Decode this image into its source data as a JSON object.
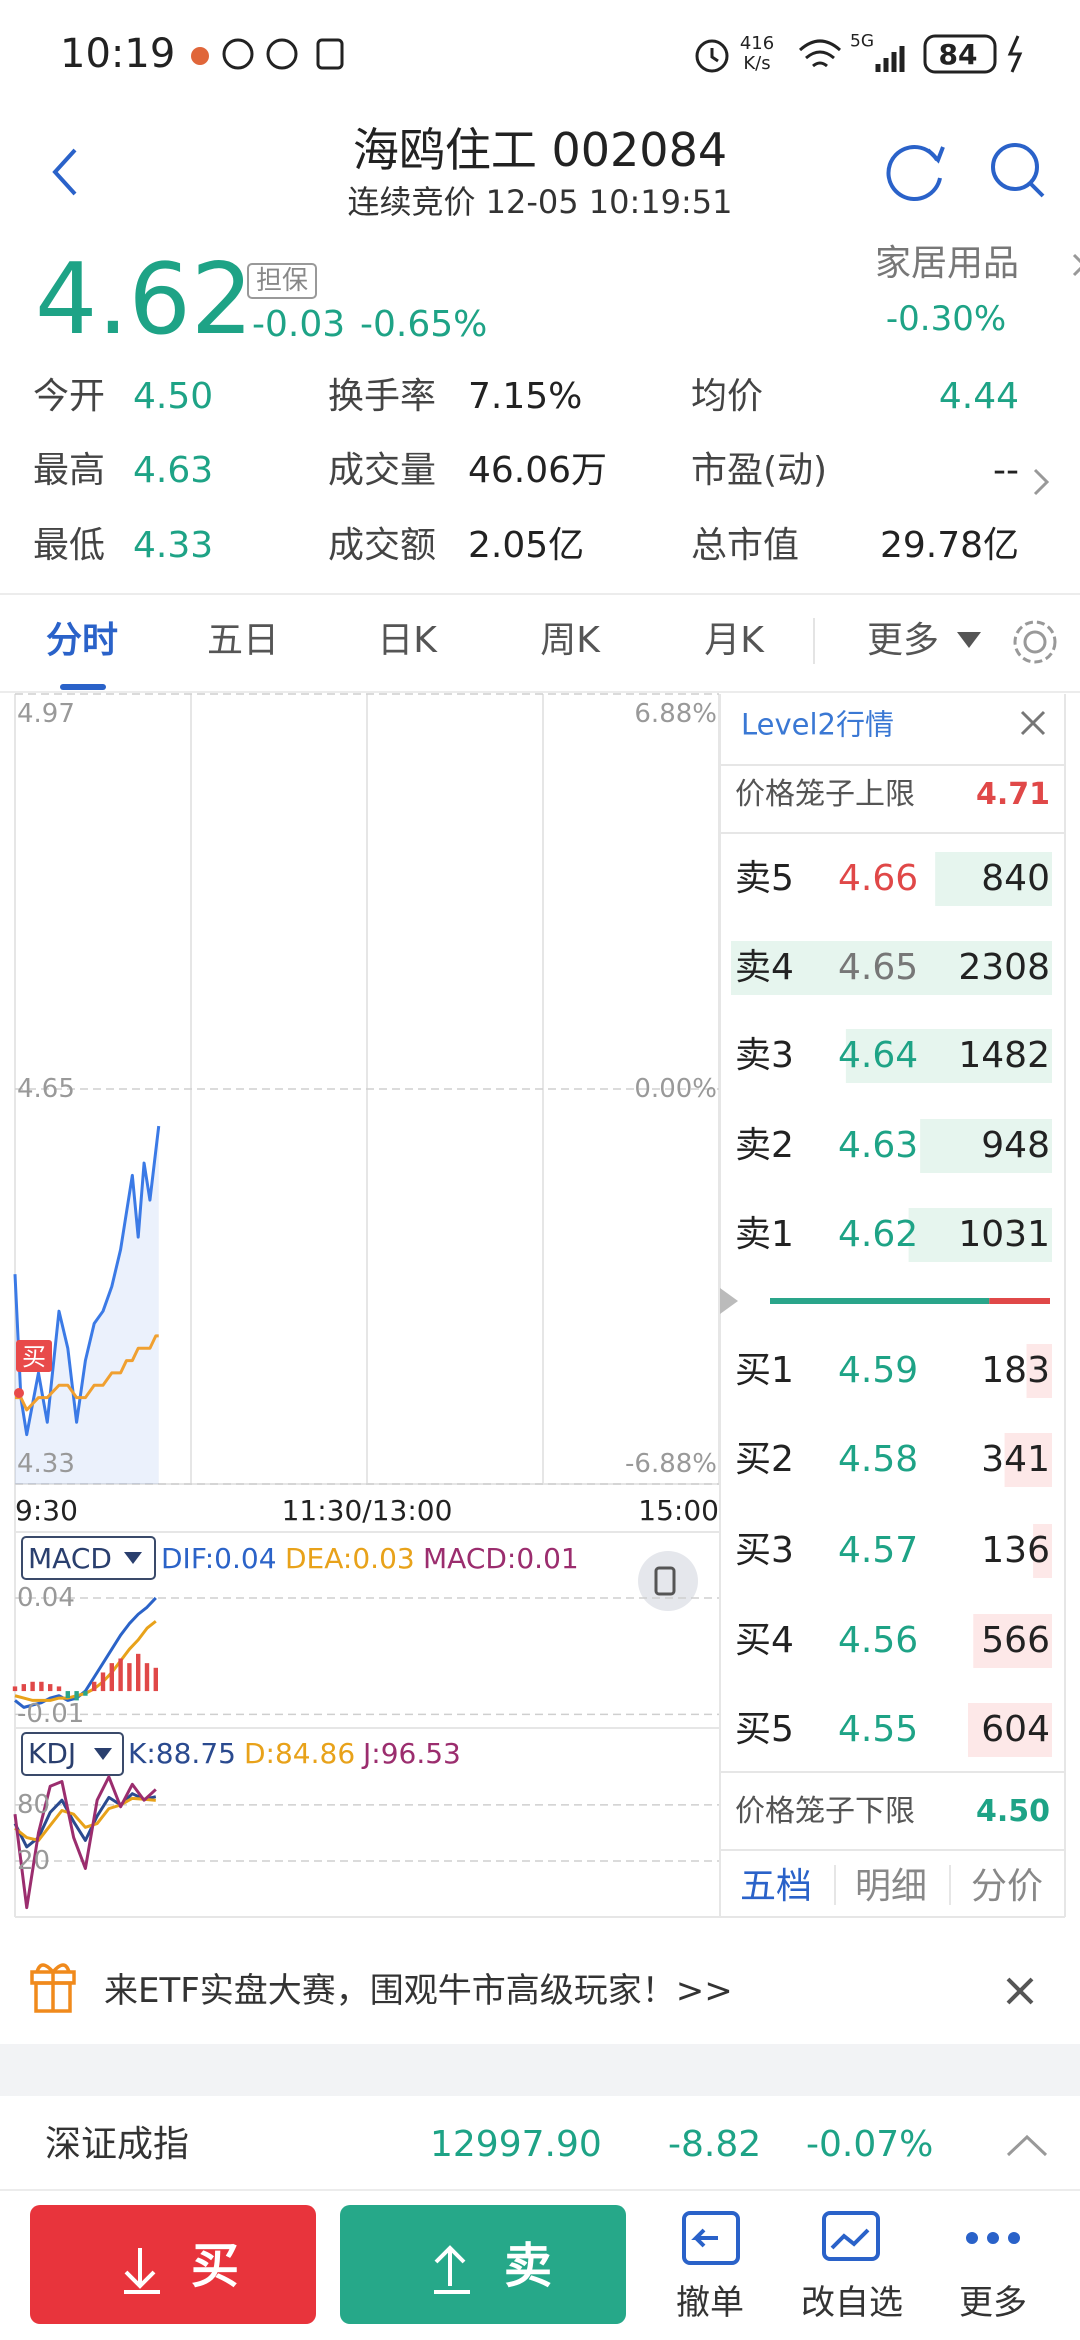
{
  "status_bar": {
    "time": "10:19",
    "net_speed": "416",
    "net_unit": "K/s",
    "network": "5G",
    "battery": "84"
  },
  "header": {
    "title": "海鸥住工 002084",
    "subtitle": "连续竞价 12-05 10:19:51"
  },
  "quote": {
    "price": "4.62",
    "badge": "担保",
    "change": "-0.03",
    "change_pct": "-0.65%",
    "sector": "家居用品",
    "sector_change": "-0.30%"
  },
  "stats": [
    [
      {
        "label": "今开",
        "value": "4.50",
        "color": "#1ea386"
      },
      {
        "label": "换手率",
        "value": "7.15%",
        "color": "#222222"
      },
      {
        "label": "均价",
        "value": "4.44",
        "color": "#1ea386"
      }
    ],
    [
      {
        "label": "最高",
        "value": "4.63",
        "color": "#1ea386"
      },
      {
        "label": "成交量",
        "value": "46.06万",
        "color": "#222222"
      },
      {
        "label": "市盈(动)",
        "value": "--",
        "color": "#222222"
      }
    ],
    [
      {
        "label": "最低",
        "value": "4.33",
        "color": "#1ea386"
      },
      {
        "label": "成交额",
        "value": "2.05亿",
        "color": "#222222"
      },
      {
        "label": "总市值",
        "value": "29.78亿",
        "color": "#222222"
      }
    ]
  ],
  "tabs": {
    "items": [
      "分时",
      "五日",
      "日K",
      "周K",
      "月K",
      "更多"
    ],
    "active": 0
  },
  "chart_data": [
    {
      "type": "line",
      "xlim": [
        0,
        240
      ],
      "xticks": [
        {
          "value": 0,
          "label": "9:30"
        },
        {
          "value": 120,
          "label": "11:30/13:00"
        },
        {
          "value": 240,
          "label": "15:00"
        }
      ],
      "ylim": [
        4.33,
        4.97
      ],
      "yticks": [
        4.33,
        4.65,
        4.97
      ],
      "y2lim": [
        -6.88,
        6.88
      ],
      "y2ticks": [
        {
          "value": -6.88,
          "label": "-6.88%"
        },
        {
          "value": 0,
          "label": "0.00%"
        },
        {
          "value": 6.88,
          "label": "6.88%"
        }
      ],
      "grid": true,
      "annotations": [
        "买"
      ],
      "x": [
        0,
        2,
        4,
        8,
        11,
        15,
        18,
        21,
        24,
        27,
        30,
        33,
        36,
        38,
        40,
        42,
        44,
        46,
        48,
        49
      ],
      "series": [
        {
          "color": "#3b7ae6",
          "fill": true,
          "values": [
            4.5,
            4.4,
            4.37,
            4.42,
            4.38,
            4.47,
            4.44,
            4.38,
            4.43,
            4.46,
            4.47,
            4.49,
            4.52,
            4.55,
            4.58,
            4.53,
            4.59,
            4.56,
            4.6,
            4.62
          ]
        },
        {
          "color": "#f0a030",
          "values": [
            4.4,
            4.4,
            4.39,
            4.4,
            4.4,
            4.41,
            4.41,
            4.4,
            4.4,
            4.41,
            4.41,
            4.42,
            4.42,
            4.43,
            4.43,
            4.44,
            4.44,
            4.44,
            4.45,
            4.45
          ]
        }
      ]
    },
    {
      "type": "combo",
      "indicator": "MACD",
      "xlim": [
        0,
        240
      ],
      "ylim": [
        -0.015,
        0.046
      ],
      "yticks": [
        -0.01,
        0.04
      ],
      "x": [
        0,
        3,
        6,
        9,
        12,
        15,
        18,
        21,
        24,
        27,
        30,
        33,
        36,
        39,
        42,
        45,
        48
      ],
      "series": [
        {
          "name": "DIF:0.04",
          "color": "#2b63c8",
          "kind": "line",
          "values": [
            -0.004,
            -0.007,
            -0.006,
            -0.005,
            -0.003,
            -0.002,
            -0.004,
            -0.003,
            0.0,
            0.006,
            0.012,
            0.018,
            0.024,
            0.029,
            0.033,
            0.036,
            0.04
          ]
        },
        {
          "name": "DEA:0.03",
          "color": "#e8a21a",
          "kind": "line",
          "values": [
            -0.002,
            -0.003,
            -0.004,
            -0.004,
            -0.004,
            -0.003,
            -0.003,
            -0.002,
            -0.001,
            0.001,
            0.004,
            0.008,
            0.013,
            0.018,
            0.022,
            0.027,
            0.03
          ]
        },
        {
          "name": "MACD:0.01",
          "color": "#9b2d6e",
          "kind": "bar",
          "up_color": "#e04848",
          "down_color": "#2aa58a",
          "values": [
            0.002,
            0.003,
            0.004,
            0.004,
            0.003,
            0.002,
            -0.003,
            -0.004,
            -0.002,
            0.004,
            0.008,
            0.012,
            0.014,
            0.012,
            0.016,
            0.012,
            0.01
          ]
        }
      ]
    },
    {
      "type": "combo",
      "indicator": "KDJ",
      "xlim": [
        0,
        240
      ],
      "ylim": [
        -40,
        112
      ],
      "yticks": [
        20,
        80
      ],
      "x": [
        0,
        4,
        8,
        12,
        16,
        20,
        24,
        28,
        32,
        36,
        40,
        44,
        48
      ],
      "series": [
        {
          "name": "K:88.75",
          "color": "#2a4a8f",
          "kind": "line",
          "values": [
            60,
            35,
            45,
            72,
            85,
            62,
            42,
            68,
            88,
            80,
            92,
            86,
            88.75
          ]
        },
        {
          "name": "D:84.86",
          "color": "#e8a21a",
          "kind": "line",
          "values": [
            55,
            45,
            42,
            58,
            74,
            70,
            56,
            60,
            76,
            80,
            87,
            86,
            84.86
          ]
        },
        {
          "name": "J:96.53",
          "color": "#9b2d6e",
          "kind": "line",
          "values": [
            70,
            -30,
            50,
            100,
            105,
            45,
            12,
            85,
            110,
            78,
            102,
            85,
            96.53
          ]
        }
      ]
    }
  ],
  "order_book": {
    "title": "Level2行情",
    "upper_label": "价格笼子上限",
    "upper_limit": "4.71",
    "ask_bar_color": "#e6f5ee",
    "bid_bar_color": "#fde8e8",
    "asks": [
      {
        "label": "卖5",
        "price": "4.66",
        "color": "#e04848",
        "volume": 840
      },
      {
        "label": "卖4",
        "price": "4.65",
        "color": "#777777",
        "volume": 2308
      },
      {
        "label": "卖3",
        "price": "4.64",
        "color": "#1ea386",
        "volume": 1482
      },
      {
        "label": "卖2",
        "price": "4.63",
        "color": "#1ea386",
        "volume": 948
      },
      {
        "label": "卖1",
        "price": "4.62",
        "color": "#1ea386",
        "volume": 1031
      }
    ],
    "bids": [
      {
        "label": "买1",
        "price": "4.59",
        "color": "#1ea386",
        "volume": 183
      },
      {
        "label": "买2",
        "price": "4.58",
        "color": "#1ea386",
        "volume": 341
      },
      {
        "label": "买3",
        "price": "4.57",
        "color": "#1ea386",
        "volume": 136
      },
      {
        "label": "买4",
        "price": "4.56",
        "color": "#1ea386",
        "volume": 566
      },
      {
        "label": "买5",
        "price": "4.55",
        "color": "#1ea386",
        "volume": 604
      }
    ],
    "lower_label": "价格笼子下限",
    "lower_limit": "4.50",
    "tabs": [
      "五档",
      "明细",
      "分价"
    ]
  },
  "banner": {
    "text": "来ETF实盘大赛，围观牛市高级玩家！>>"
  },
  "index": {
    "name": "深证成指",
    "value": "12997.90",
    "change": "-8.82",
    "change_pct": "-0.07%"
  },
  "bottom_bar": {
    "buy": "买",
    "sell": "卖",
    "items": [
      "撤单",
      "改自选",
      "更多"
    ]
  }
}
